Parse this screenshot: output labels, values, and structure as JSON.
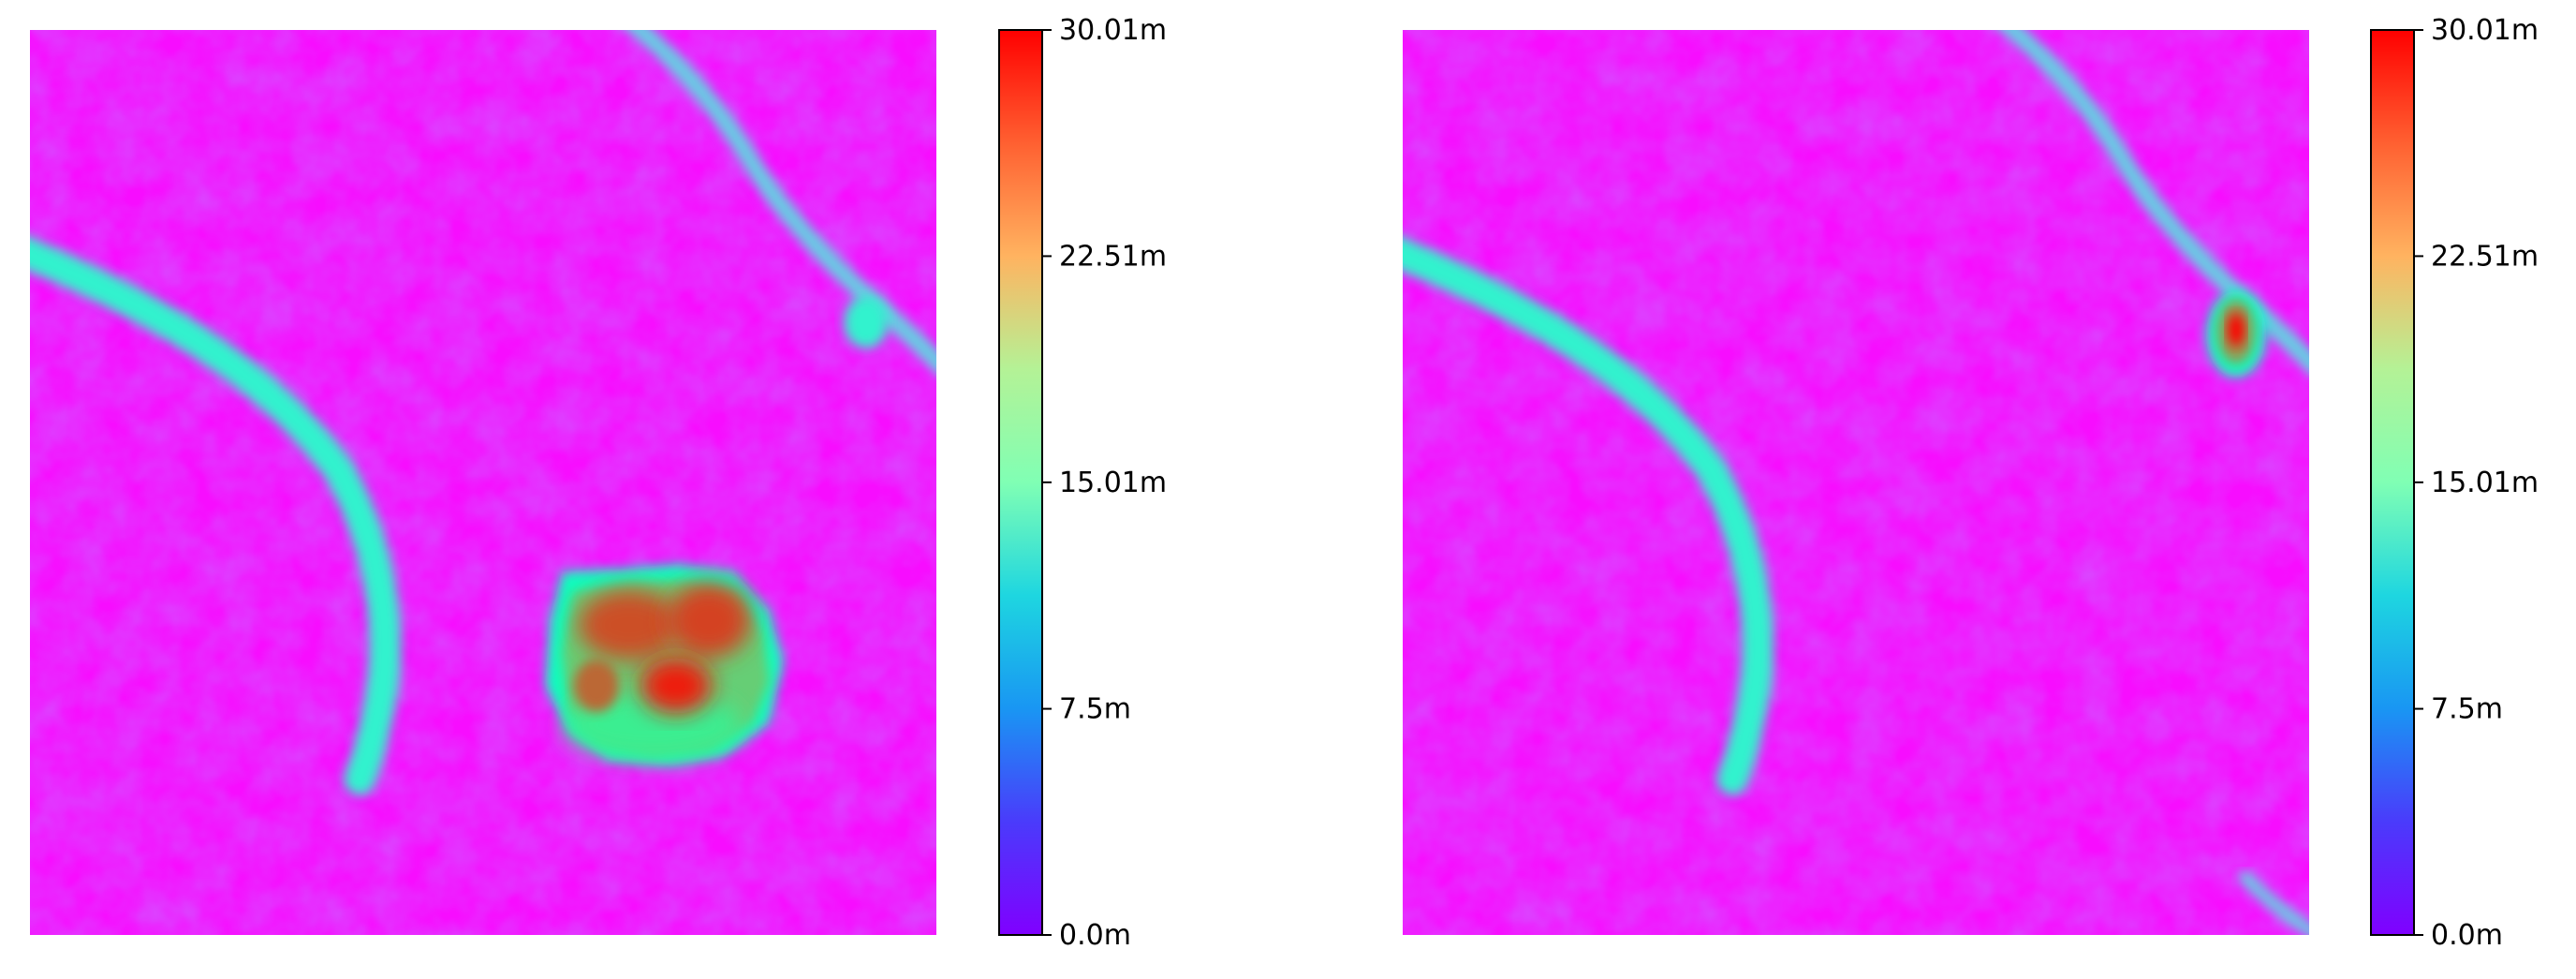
{
  "chart_data": [
    {
      "type": "heatmap",
      "title": "",
      "xlabel": "",
      "ylabel": "",
      "axes_visible": false,
      "grid": false,
      "colormap": "rainbow",
      "colorbar": {
        "range": [
          0.0,
          30.01
        ],
        "unit": "m",
        "ticks": [
          0.0,
          7.5,
          15.01,
          22.51,
          30.01
        ],
        "tick_labels": [
          "0.0m",
          "7.5m",
          "15.01m",
          "22.51m",
          "30.01m"
        ]
      },
      "features": [
        {
          "kind": "channel",
          "level_m": 12
        },
        {
          "kind": "ridge",
          "level_m": 9
        },
        {
          "kind": "small-blob",
          "level_m": 12
        },
        {
          "kind": "large-blob",
          "level_m": 24,
          "peak_m": 30
        }
      ]
    },
    {
      "type": "heatmap",
      "title": "",
      "xlabel": "",
      "ylabel": "",
      "axes_visible": false,
      "grid": false,
      "colormap": "rainbow",
      "colorbar": {
        "range": [
          0.0,
          30.01
        ],
        "unit": "m",
        "ticks": [
          0.0,
          7.5,
          15.01,
          22.51,
          30.01
        ],
        "tick_labels": [
          "0.0m",
          "7.5m",
          "15.01m",
          "22.51m",
          "30.01m"
        ]
      },
      "features": [
        {
          "kind": "channel",
          "level_m": 12
        },
        {
          "kind": "ridge",
          "level_m": 9
        },
        {
          "kind": "small-blob",
          "level_m": 24,
          "peak_m": 30
        }
      ]
    }
  ]
}
